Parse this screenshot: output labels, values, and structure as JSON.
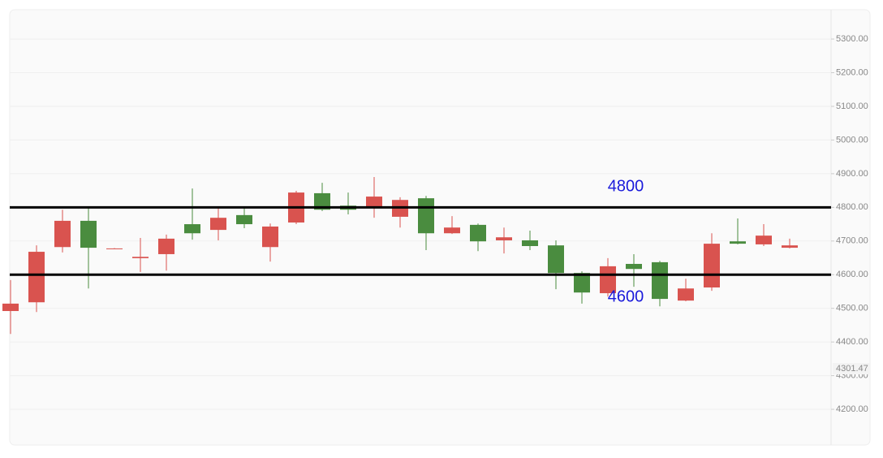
{
  "chart_data": {
    "type": "candlestick",
    "categories": [
      null,
      null,
      null,
      null,
      null,
      null,
      null,
      null,
      null,
      null,
      null,
      null,
      null,
      null,
      null,
      null,
      null,
      null,
      null,
      null,
      null,
      null,
      null,
      null,
      null,
      null,
      null,
      null,
      null,
      null,
      null
    ],
    "open": [
      4492,
      4518,
      4682,
      4760,
      4677,
      4649,
      4661,
      4750,
      4733,
      4777,
      4682,
      4755,
      4842,
      4805,
      4798,
      4772,
      4827,
      4723,
      4748,
      4702,
      4702,
      4687,
      4605,
      4545,
      4632,
      4637,
      4523,
      4562,
      4699,
      4690,
      4680
    ],
    "high": [
      4584,
      4687,
      4793,
      4798,
      4679,
      4709,
      4719,
      4856,
      4798,
      4801,
      4752,
      4849,
      4873,
      4844,
      4890,
      4830,
      4834,
      4774,
      4752,
      4740,
      4731,
      4702,
      4610,
      4649,
      4661,
      4641,
      4588,
      4723,
      4767,
      4750,
      4707
    ],
    "low": [
      4424,
      4489,
      4666,
      4559,
      4676,
      4608,
      4612,
      4704,
      4702,
      4738,
      4639,
      4750,
      4789,
      4779,
      4769,
      4740,
      4673,
      4721,
      4670,
      4663,
      4673,
      4557,
      4514,
      4535,
      4564,
      4506,
      4521,
      4552,
      4690,
      4685,
      4678
    ],
    "close": [
      4514,
      4668,
      4760,
      4680,
      4678,
      4653,
      4707,
      4723,
      4769,
      4750,
      4743,
      4844,
      4793,
      4793,
      4832,
      4822,
      4723,
      4740,
      4699,
      4711,
      4685,
      4605,
      4547,
      4625,
      4617,
      4528,
      4559,
      4692,
      4692,
      4716,
      4687
    ],
    "up_color": "#d9534f",
    "down_color": "#4a8c3f",
    "ylim": [
      4094,
      5387
    ],
    "yticks": [
      {
        "value": 4200,
        "label": "4200.00"
      },
      {
        "value": 4300,
        "label": "4300.00"
      },
      {
        "value": 4400,
        "label": "4400.00"
      },
      {
        "value": 4500,
        "label": "4500.00"
      },
      {
        "value": 4600,
        "label": "4600.00"
      },
      {
        "value": 4700,
        "label": "4700.00"
      },
      {
        "value": 4800,
        "label": "4800.00"
      },
      {
        "value": 4900,
        "label": "4900.00"
      },
      {
        "value": 5000,
        "label": "5000.00"
      },
      {
        "value": 5100,
        "label": "5100.00"
      },
      {
        "value": 5200,
        "label": "5200.00"
      },
      {
        "value": 5300,
        "label": "5300.00"
      }
    ],
    "grid": true,
    "hlines": [
      4800,
      4600
    ],
    "hline_color": "#000000",
    "hline_label_color": "#1a1adb",
    "price_label": 4301.47
  }
}
